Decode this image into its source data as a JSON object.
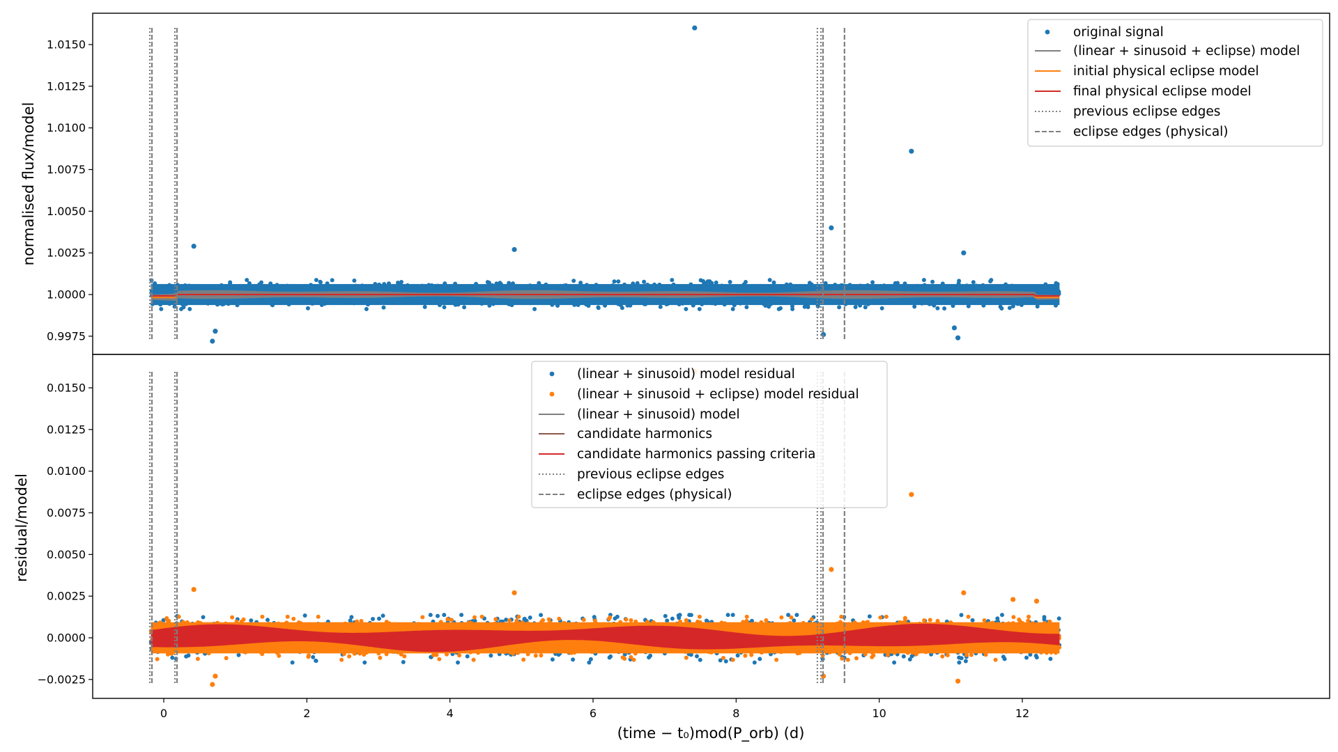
{
  "chart_data": [
    {
      "type": "scatter",
      "panel": "top",
      "ylabel": "normalised flux/model",
      "xlim": [
        -0.8,
        13.0
      ],
      "ylim": [
        0.99955,
        1.01655
      ],
      "yticks": [
        0.9975,
        1.0,
        1.0025,
        1.005,
        1.0075,
        1.01,
        1.0125,
        1.015
      ],
      "ytick_labels": [
        "0.9975",
        "1.0000",
        "1.0025",
        "1.0050",
        "1.0075",
        "1.0100",
        "1.0125",
        "1.0150"
      ],
      "legend_position": "top-right",
      "legend": [
        {
          "label": "original signal",
          "kind": "marker",
          "color": "#1f77b4"
        },
        {
          "label": "(linear + sinusoid + eclipse) model",
          "kind": "line",
          "color": "#7f7f7f"
        },
        {
          "label": "initial physical eclipse model",
          "kind": "line",
          "color": "#ff7f0e"
        },
        {
          "label": "final physical eclipse model",
          "kind": "line",
          "color": "#d62728"
        },
        {
          "label": "previous eclipse edges",
          "kind": "dotted",
          "color": "#7f7f7f"
        },
        {
          "label": "eclipse edges (physical)",
          "kind": "dashed",
          "color": "#7f7f7f"
        }
      ],
      "scatter_band": {
        "x_range": [
          -0.18,
          12.52
        ],
        "center": 1.0,
        "half_width": 0.0007
      },
      "model_band": {
        "center": 1.0,
        "half_width": 0.00025
      },
      "eclipse_dips": [
        {
          "x_range": [
            -0.18,
            0.17
          ],
          "depth": 0.0004
        },
        {
          "x_range": [
            12.18,
            12.52
          ],
          "depth": 0.0004
        }
      ],
      "outliers": [
        {
          "x": 7.42,
          "y": 1.016
        },
        {
          "x": 10.45,
          "y": 1.0086
        },
        {
          "x": 9.33,
          "y": 1.004
        },
        {
          "x": 0.42,
          "y": 1.0029
        },
        {
          "x": 4.9,
          "y": 1.0027
        },
        {
          "x": 0.68,
          "y": 0.9972
        },
        {
          "x": 0.72,
          "y": 0.9978
        },
        {
          "x": 11.1,
          "y": 0.9974
        },
        {
          "x": 9.22,
          "y": 0.9976
        },
        {
          "x": 11.18,
          "y": 1.0025
        },
        {
          "x": 11.05,
          "y": 0.998
        }
      ]
    },
    {
      "type": "scatter",
      "panel": "bottom",
      "ylabel": "residual/model",
      "xlabel": "(time − t₀)mod(P_orb) (d)",
      "xlim": [
        -0.8,
        13.0
      ],
      "ylim": [
        -0.0037,
        0.0165
      ],
      "xticks": [
        0,
        2,
        4,
        6,
        8,
        10,
        12
      ],
      "xtick_labels": [
        "0",
        "2",
        "4",
        "6",
        "8",
        "10",
        "12"
      ],
      "yticks": [
        -0.0025,
        0.0,
        0.0025,
        0.005,
        0.0075,
        0.01,
        0.0125,
        0.015
      ],
      "ytick_labels": [
        "−0.0025",
        "0.0000",
        "0.0025",
        "0.0050",
        "0.0075",
        "0.0100",
        "0.0125",
        "0.0150"
      ],
      "legend_position": "upper-center",
      "legend": [
        {
          "label": "(linear + sinusoid) model residual",
          "kind": "marker",
          "color": "#1f77b4"
        },
        {
          "label": "(linear + sinusoid + eclipse) model residual",
          "kind": "marker",
          "color": "#ff7f0e"
        },
        {
          "label": "(linear + sinusoid) model",
          "kind": "line",
          "color": "#7f7f7f"
        },
        {
          "label": "candidate harmonics",
          "kind": "line",
          "color": "#8c564b"
        },
        {
          "label": "candidate harmonics passing criteria",
          "kind": "line",
          "color": "#d62728"
        },
        {
          "label": "previous eclipse edges",
          "kind": "dotted",
          "color": "#7f7f7f"
        },
        {
          "label": "eclipse edges (physical)",
          "kind": "dashed",
          "color": "#7f7f7f"
        }
      ],
      "scatter_band": {
        "x_range": [
          -0.18,
          12.52
        ],
        "center": 0.0,
        "half_width": 0.0011
      },
      "harmonics_band": {
        "center": 0.0,
        "half_width": 0.0006
      },
      "outliers": [
        {
          "x": 7.42,
          "y": 0.016
        },
        {
          "x": 10.45,
          "y": 0.0086
        },
        {
          "x": 9.33,
          "y": 0.0041
        },
        {
          "x": 0.42,
          "y": 0.0029
        },
        {
          "x": 4.9,
          "y": 0.0027
        },
        {
          "x": 0.68,
          "y": -0.0028
        },
        {
          "x": 0.72,
          "y": -0.0023
        },
        {
          "x": 11.1,
          "y": -0.0026
        },
        {
          "x": 11.18,
          "y": 0.0027
        },
        {
          "x": 9.22,
          "y": -0.0023
        },
        {
          "x": 12.2,
          "y": 0.0022
        },
        {
          "x": 11.87,
          "y": 0.0023
        }
      ]
    }
  ],
  "eclipse_edges": {
    "previous": [
      -0.18,
      0.17,
      9.15,
      9.2
    ],
    "physical": [
      -0.18,
      0.17,
      9.2,
      9.5
    ]
  },
  "colors": {
    "blue": "#1f77b4",
    "orange": "#ff7f0e",
    "red": "#d62728",
    "gray": "#7f7f7f",
    "brown": "#8c564b"
  }
}
